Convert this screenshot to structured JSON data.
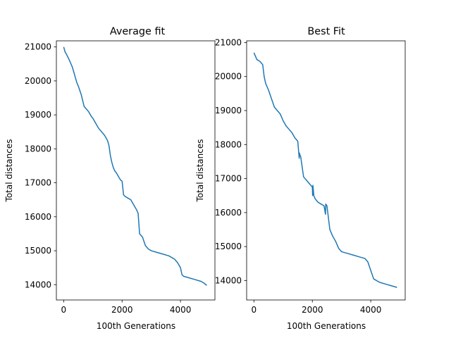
{
  "chart_data": [
    {
      "type": "line",
      "title": "Average fit",
      "xlabel": "100th Generations",
      "ylabel": "Total distances",
      "xlim": [
        -250,
        5180
      ],
      "ylim": [
        13550,
        21180
      ],
      "xticks": [
        0,
        2000,
        4000
      ],
      "yticks": [
        14000,
        15000,
        16000,
        17000,
        18000,
        19000,
        20000,
        21000
      ],
      "grid": false,
      "color": "#1f77b4",
      "series": [
        {
          "x": [
            0,
            50,
            100,
            200,
            300,
            400,
            450,
            500,
            600,
            700,
            750,
            850,
            950,
            1000,
            1100,
            1200,
            1300,
            1400,
            1500,
            1550,
            1600,
            1650,
            1700,
            1750,
            1800,
            1900,
            1950,
            2000,
            2050,
            2100,
            2200,
            2300,
            2400,
            2500,
            2550,
            2600,
            2650,
            2700,
            2800,
            2900,
            3000,
            3200,
            3400,
            3600,
            3800,
            3900,
            4000,
            4050,
            4100,
            4300,
            4500,
            4700,
            4800,
            4900
          ],
          "y": [
            21000,
            20850,
            20780,
            20600,
            20400,
            20100,
            19950,
            19850,
            19600,
            19250,
            19200,
            19100,
            18950,
            18900,
            18750,
            18600,
            18500,
            18400,
            18250,
            18100,
            17800,
            17600,
            17450,
            17350,
            17300,
            17150,
            17080,
            17050,
            16650,
            16600,
            16550,
            16500,
            16350,
            16200,
            16100,
            15500,
            15450,
            15400,
            15150,
            15050,
            15000,
            14950,
            14900,
            14850,
            14750,
            14650,
            14500,
            14300,
            14250,
            14200,
            14150,
            14100,
            14050,
            13980
          ]
        }
      ]
    },
    {
      "type": "line",
      "title": "Best Fit",
      "xlabel": "100th Generations",
      "ylabel": "Total distances",
      "xlim": [
        -250,
        5180
      ],
      "ylim": [
        13430,
        21050
      ],
      "xticks": [
        0,
        2000,
        4000
      ],
      "yticks": [
        14000,
        15000,
        16000,
        17000,
        18000,
        19000,
        20000,
        21000
      ],
      "grid": false,
      "color": "#1f77b4",
      "series": [
        {
          "x": [
            0,
            50,
            100,
            200,
            300,
            350,
            400,
            500,
            600,
            700,
            800,
            900,
            1000,
            1100,
            1200,
            1300,
            1400,
            1500,
            1550,
            1560,
            1570,
            1600,
            1700,
            1800,
            1900,
            1950,
            2000,
            2010,
            2020,
            2050,
            2100,
            2200,
            2300,
            2400,
            2450,
            2460,
            2500,
            2600,
            2700,
            2800,
            2900,
            3000,
            3200,
            3400,
            3600,
            3800,
            3900,
            4000,
            4100,
            4300,
            4500,
            4700,
            4900
          ],
          "y": [
            20700,
            20600,
            20500,
            20450,
            20350,
            20000,
            19800,
            19600,
            19350,
            19100,
            19000,
            18900,
            18700,
            18550,
            18450,
            18350,
            18200,
            18100,
            17600,
            17750,
            17700,
            17650,
            17050,
            16950,
            16850,
            16800,
            16750,
            16500,
            16800,
            16500,
            16400,
            16300,
            16250,
            16200,
            15950,
            16250,
            16200,
            15500,
            15300,
            15150,
            14950,
            14850,
            14800,
            14750,
            14700,
            14650,
            14550,
            14300,
            14050,
            13950,
            13900,
            13850,
            13800
          ]
        }
      ]
    }
  ]
}
